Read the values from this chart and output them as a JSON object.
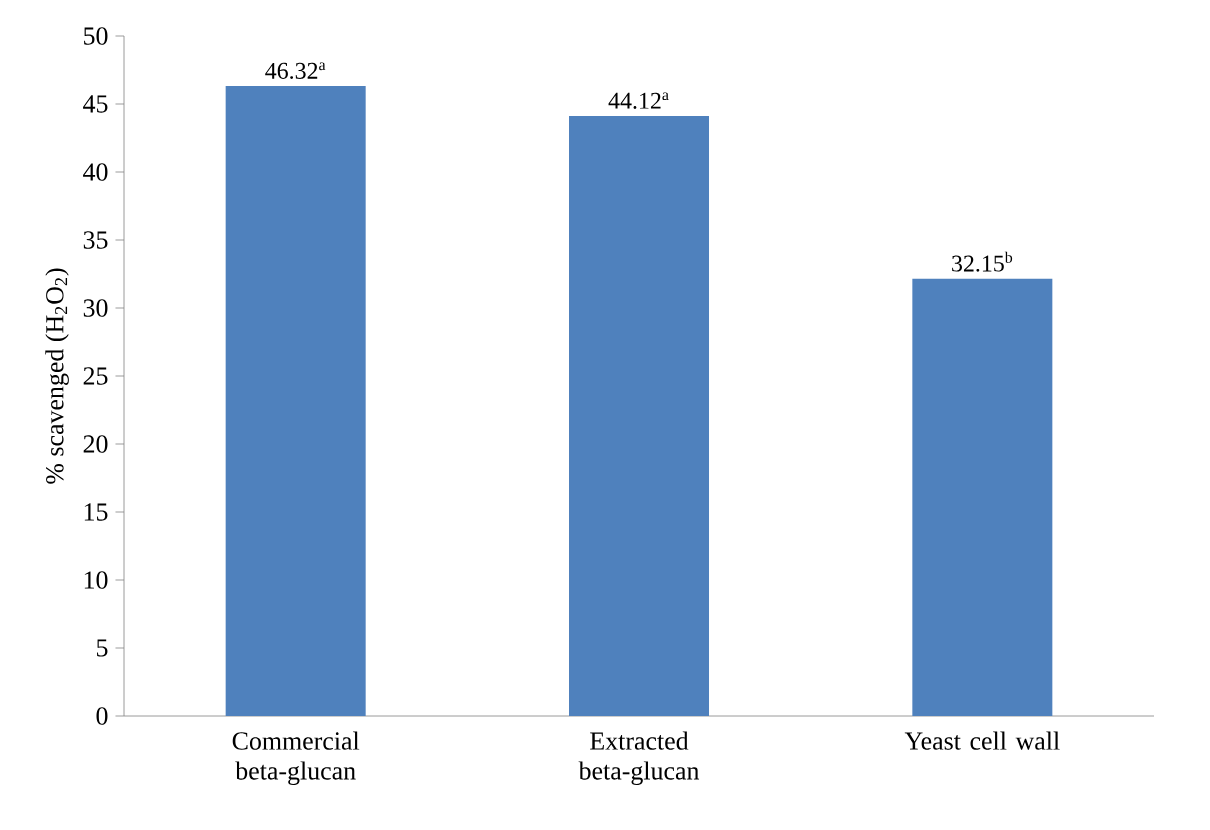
{
  "chart_data": {
    "type": "bar",
    "ylabel": "% scavenged (H$_{2}$O$_{2}$)",
    "categories": [
      "Commercial beta-glucan",
      "Extracted beta-glucan",
      "Yeast cell wall"
    ],
    "values": [
      46.32,
      44.12,
      32.15
    ],
    "value_labels": [
      "46.32$^{a}$",
      "44.12$^{a}$",
      "32.15$^{b}$"
    ],
    "color": "#4f81bd",
    "ylim": [
      0,
      50
    ],
    "yticks": [
      0,
      5,
      10,
      15,
      20,
      25,
      30,
      35,
      40,
      45,
      50
    ],
    "grid": false
  }
}
